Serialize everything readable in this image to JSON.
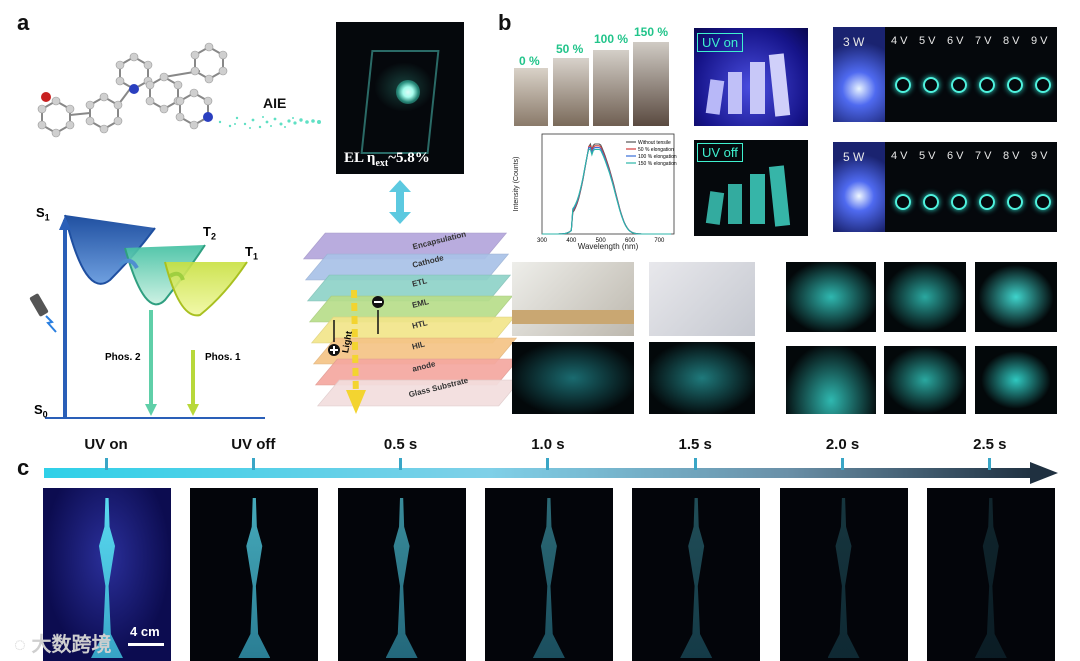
{
  "panel_labels": {
    "a": "a",
    "b": "b",
    "c": "c"
  },
  "panel_a": {
    "aie_label": "AIE",
    "el_label_prefix": "EL η",
    "el_label_sub": "ext",
    "el_label_value": "~5.8%",
    "energy": {
      "s1": "S",
      "s1_sub": "1",
      "s0": "S",
      "s0_sub": "0",
      "t2": "T",
      "t2_sub": "2",
      "t1": "T",
      "t1_sub": "1",
      "phos2": "Phos. 2",
      "phos1": "Phos. 1"
    },
    "device_layers": [
      "Encapsulation",
      "Cathode",
      "ETL",
      "EML",
      "HTL",
      "HIL",
      "anode",
      "Glass Substrate"
    ],
    "device_layer_colors": [
      "#b4a6dc",
      "#a9c2e8",
      "#8fd3c8",
      "#b8de8a",
      "#f2e58a",
      "#f5c486",
      "#f5a8a0",
      "#f3dede"
    ],
    "light_label": "Light"
  },
  "panel_b": {
    "stretch_percents": [
      "0 %",
      "50 %",
      "100 %",
      "150 %"
    ],
    "plot": {
      "xlabel": "Wavelength (nm)",
      "ylabel": "Intensity (Counts)",
      "xticks": [
        "300",
        "400",
        "500",
        "600",
        "700"
      ],
      "legend": [
        "Without tensile",
        "50 % elongation",
        "100 % elongation",
        "150 % elongation"
      ],
      "legend_colors": [
        "#555555",
        "#d23b3b",
        "#3a6fd8",
        "#2bb5a8"
      ]
    },
    "uv_on": "UV on",
    "uv_off": "UV off",
    "power_rows": [
      {
        "power": "3 W",
        "volts": [
          "4 V",
          "5 V",
          "6 V",
          "7 V",
          "8 V",
          "9 V"
        ]
      },
      {
        "power": "5 W",
        "volts": [
          "4 V",
          "5 V",
          "6 V",
          "7 V",
          "8 V",
          "9 V"
        ]
      }
    ]
  },
  "panel_c": {
    "times": [
      "UV on",
      "UV off",
      "0.5 s",
      "1.0 s",
      "1.5 s",
      "2.0 s",
      "2.5 s"
    ],
    "scale_bar": "4 cm",
    "brightness": [
      1.0,
      0.85,
      0.75,
      0.62,
      0.5,
      0.38,
      0.28
    ]
  },
  "watermark": "大数跨境"
}
